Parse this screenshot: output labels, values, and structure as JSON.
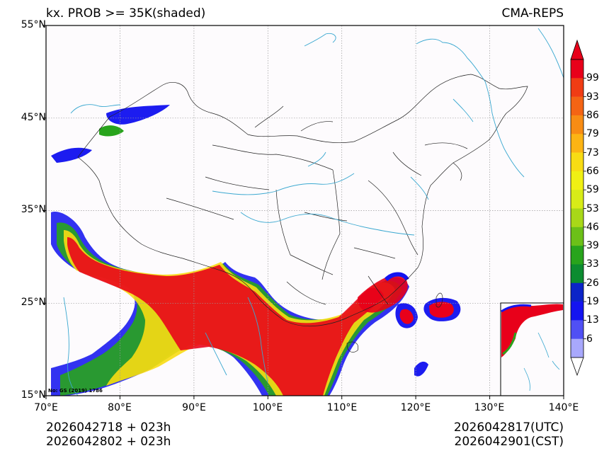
{
  "header": {
    "title_left": "kx. PROB >= 35K(shaded)",
    "title_right": "CMA-REPS"
  },
  "axes": {
    "lat_labels": [
      "55°N",
      "45°N",
      "35°N",
      "25°N",
      "15°N"
    ],
    "lon_labels": [
      "70°E",
      "80°E",
      "90°E",
      "100°E",
      "110°E",
      "120°E",
      "130°E",
      "140°E"
    ]
  },
  "colorbar": {
    "levels": [
      "99",
      "93",
      "86",
      "79",
      "73",
      "66",
      "59",
      "53",
      "46",
      "39",
      "33",
      "26",
      "19",
      "13",
      "6"
    ],
    "colors": [
      "#e8001a",
      "#f03c14",
      "#f46414",
      "#f88c14",
      "#fcb414",
      "#f8dc14",
      "#f0f014",
      "#d8ec18",
      "#a8d818",
      "#6cc018",
      "#28a41c",
      "#0c8c30",
      "#0c24c8",
      "#1414f0",
      "#5050f4",
      "#a8a8fc"
    ]
  },
  "stamp": "No: GS (2019) 1786",
  "footer": {
    "left_line1": "2026042718  +  023h",
    "left_line2": "2026042802  +  023h",
    "right_line1": "2026042817(UTC)",
    "right_line2": "2026042901(CST)"
  },
  "map_data": {
    "extent_lon": [
      70,
      140
    ],
    "extent_lat": [
      15,
      55
    ],
    "grid_lon": [
      70,
      80,
      90,
      100,
      110,
      120,
      130,
      140
    ],
    "grid_lat": [
      15,
      25,
      35,
      45,
      55
    ]
  }
}
